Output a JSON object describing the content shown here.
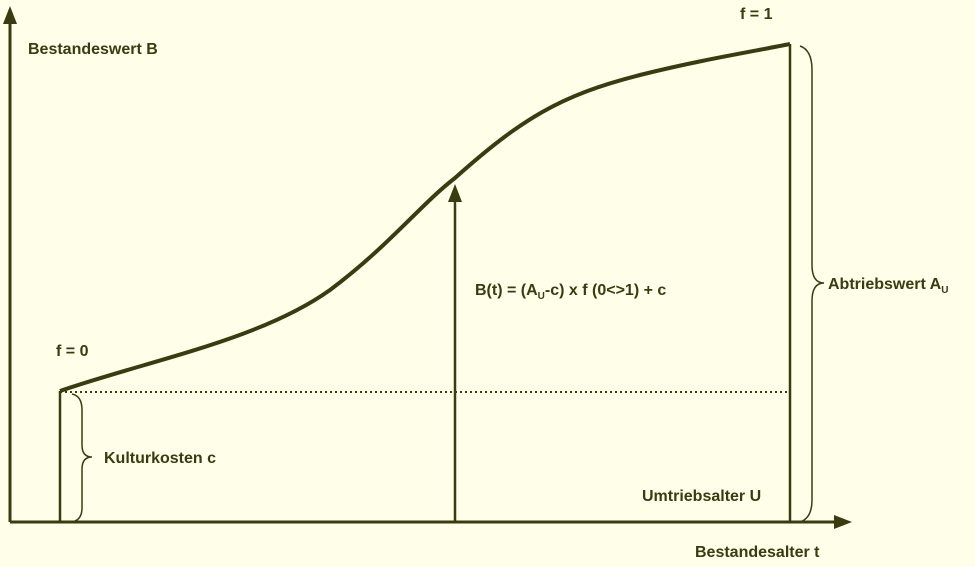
{
  "labels": {
    "y_axis": "Bestandeswert B",
    "x_axis": "Bestandesalter t",
    "f_start": "f = 0",
    "f_end": "f = 1",
    "formula": [
      "B(t) = (A",
      "U",
      "-c) x f (0<>1) + c"
    ],
    "final_value": [
      "Abtriebswert A",
      "U"
    ],
    "culture_cost": "Kulturkosten c",
    "rotation_age": "Umtriebsalter U"
  }
}
